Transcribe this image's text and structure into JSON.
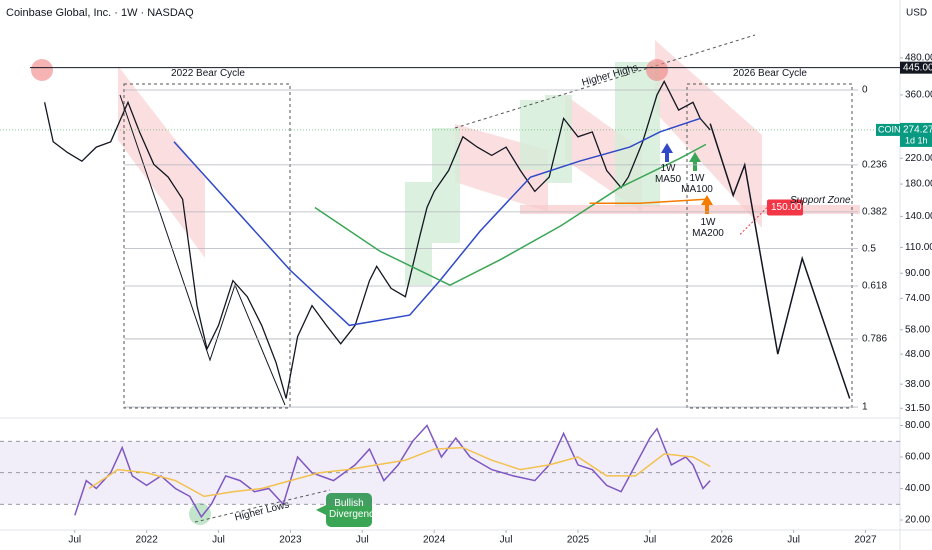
{
  "chart_data": [
    {
      "type": "line",
      "title": "Coinbase Global, Inc. · 1W · NASDAQ",
      "currency": "USD",
      "log_scale": true,
      "xlim": [
        2020.98,
        2027.24
      ],
      "ylim": [
        29.9,
        753
      ],
      "xticks": [
        {
          "value": 2021.5,
          "label": "Jul"
        },
        2022,
        {
          "value": 2022.5,
          "label": "Jul"
        },
        2023,
        {
          "value": 2023.5,
          "label": "Jul"
        },
        2024,
        {
          "value": 2024.5,
          "label": "Jul"
        },
        2025,
        {
          "value": 2025.5,
          "label": "Jul"
        },
        2026,
        {
          "value": 2026.5,
          "label": "Jul"
        },
        2027
      ],
      "yticks": [
        {
          "value": 480,
          "label": "480.00"
        },
        {
          "value": 360,
          "label": "360.00"
        },
        {
          "value": 220,
          "label": "220.00"
        },
        {
          "value": 180,
          "label": "180.00"
        },
        {
          "value": 140,
          "label": "140.00"
        },
        {
          "value": 110,
          "label": "110.00"
        },
        {
          "value": 90,
          "label": "90.00"
        },
        {
          "value": 74,
          "label": "74.00"
        },
        {
          "value": 58,
          "label": "58.00"
        },
        {
          "value": 48,
          "label": "48.00"
        },
        {
          "value": 38,
          "label": "38.00"
        },
        {
          "value": 31.5,
          "label": "31.50"
        }
      ],
      "series": [
        {
          "name": "COIN",
          "color": "#131722",
          "x": [
            2021.29,
            2021.35,
            2021.45,
            2021.55,
            2021.65,
            2021.75,
            2021.87,
            2021.95,
            2022.05,
            2022.15,
            2022.25,
            2022.35,
            2022.42,
            2022.5,
            2022.6,
            2022.7,
            2022.8,
            2022.9,
            2022.97,
            2023.05,
            2023.15,
            2023.25,
            2023.35,
            2023.45,
            2023.55,
            2023.6,
            2023.7,
            2023.8,
            2023.9,
            2023.95,
            2024.0,
            2024.1,
            2024.2,
            2024.3,
            2024.4,
            2024.5,
            2024.6,
            2024.7,
            2024.8,
            2024.9,
            2025.0,
            2025.1,
            2025.2,
            2025.3,
            2025.35,
            2025.45,
            2025.55,
            2025.6,
            2025.7,
            2025.8,
            2025.85,
            2025.92
          ],
          "values": [
            340,
            250,
            230,
            215,
            240,
            250,
            340,
            270,
            210,
            190,
            160,
            70,
            50,
            60,
            85,
            75,
            60,
            45,
            34,
            55,
            70,
            60,
            52,
            60,
            85,
            95,
            80,
            75,
            120,
            150,
            170,
            200,
            260,
            240,
            225,
            240,
            200,
            170,
            190,
            300,
            260,
            270,
            200,
            175,
            190,
            250,
            360,
            400,
            320,
            340,
            300,
            274
          ]
        },
        {
          "name": "1W MA50",
          "color": "#2f49c8",
          "x": [
            2022.19,
            2023.0,
            2023.41,
            2023.83,
            2024.04,
            2024.32,
            2024.67,
            2025.01,
            2025.36,
            2025.57,
            2025.85
          ],
          "values": [
            250,
            92,
            60,
            65,
            85,
            125,
            190,
            215,
            240,
            270,
            300
          ]
        },
        {
          "name": "1W MA100",
          "color": "#3aa655",
          "x": [
            2023.17,
            2023.62,
            2024.11,
            2024.46,
            2024.88,
            2025.29,
            2025.71,
            2025.89
          ],
          "values": [
            150,
            107,
            82,
            100,
            130,
            175,
            220,
            245
          ]
        },
        {
          "name": "1W MA200",
          "color": "#f57c00",
          "x": [
            2025.08,
            2025.43,
            2025.89
          ],
          "values": [
            155,
            155,
            160
          ]
        },
        {
          "color": "#131722",
          "x": [
            2025.92,
            2026.08,
            2026.16,
            2026.39,
            2026.56,
            2026.89
          ],
          "values": [
            288,
            165,
            209,
            48,
            101,
            34
          ]
        }
      ],
      "fib_levels": [
        {
          "level": 0,
          "price": 374
        },
        {
          "level": 0.236,
          "price": 209
        },
        {
          "level": 0.382,
          "price": 145
        },
        {
          "level": 0.5,
          "price": 109
        },
        {
          "level": 0.618,
          "price": 81.5
        },
        {
          "level": 0.786,
          "price": 54
        },
        {
          "level": 1,
          "price": 31.8
        }
      ],
      "resistance": {
        "value": 445,
        "label": "445.00"
      },
      "target": {
        "value": 150,
        "label": "150.00"
      },
      "last": {
        "price": 274.27,
        "countdown": "1d 1h"
      },
      "annotations": [
        "2022 Bear Cycle",
        "2026 Bear Cycle",
        "Higher Highs",
        "Support Zone"
      ]
    },
    {
      "type": "line",
      "xlim": [
        2020.98,
        2027.24
      ],
      "ylim": [
        13.65,
        83.5
      ],
      "yticks": [
        {
          "value": 80,
          "label": "80.00"
        },
        {
          "value": 60,
          "label": "60.00"
        },
        {
          "value": 40,
          "label": "40.00"
        },
        {
          "value": 20,
          "label": "20.00"
        }
      ],
      "band": [
        30,
        70
      ],
      "levels": [
        70,
        50,
        30
      ],
      "series": [
        {
          "color": "#7e57c2",
          "x": [
            2021.5,
            2021.58,
            2021.65,
            2021.75,
            2021.83,
            2021.9,
            2022.0,
            2022.1,
            2022.2,
            2022.3,
            2022.38,
            2022.45,
            2022.55,
            2022.65,
            2022.75,
            2022.85,
            2022.95,
            2023.05,
            2023.15,
            2023.3,
            2023.45,
            2023.55,
            2023.65,
            2023.75,
            2023.85,
            2023.95,
            2024.05,
            2024.15,
            2024.25,
            2024.4,
            2024.55,
            2024.7,
            2024.8,
            2024.9,
            2025.0,
            2025.1,
            2025.2,
            2025.3,
            2025.4,
            2025.5,
            2025.55,
            2025.65,
            2025.75,
            2025.8,
            2025.87,
            2025.92
          ],
          "values": [
            23,
            45,
            40,
            50,
            66,
            48,
            42,
            48,
            40,
            35,
            22,
            30,
            48,
            45,
            38,
            40,
            30,
            60,
            50,
            45,
            55,
            65,
            45,
            55,
            70,
            80,
            60,
            72,
            60,
            52,
            48,
            45,
            55,
            75,
            55,
            52,
            42,
            38,
            55,
            72,
            78,
            55,
            60,
            55,
            40,
            45
          ]
        },
        {
          "color": "#f2c14e",
          "x": [
            2021.6,
            2021.8,
            2022.0,
            2022.2,
            2022.4,
            2022.6,
            2022.8,
            2023.0,
            2023.2,
            2023.4,
            2023.6,
            2023.8,
            2024.0,
            2024.2,
            2024.4,
            2024.6,
            2024.8,
            2025.0,
            2025.2,
            2025.4,
            2025.6,
            2025.8,
            2025.92
          ],
          "values": [
            40,
            52,
            50,
            45,
            35,
            38,
            40,
            45,
            50,
            52,
            55,
            58,
            65,
            66,
            58,
            52,
            55,
            60,
            48,
            48,
            62,
            60,
            54
          ]
        }
      ],
      "annotations": [
        "Higher Lows",
        "Bullish Divergence"
      ]
    }
  ]
}
